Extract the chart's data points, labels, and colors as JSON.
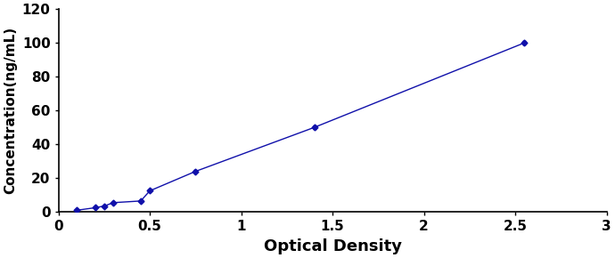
{
  "x_values": [
    0.1,
    0.2,
    0.25,
    0.3,
    0.45,
    0.5,
    0.75,
    1.4,
    2.55
  ],
  "y_values": [
    1.0,
    2.5,
    3.5,
    5.5,
    6.5,
    12.5,
    24.0,
    50.0,
    100.0
  ],
  "y_errors": [
    0.3,
    0.3,
    0.3,
    0.3,
    0.4,
    0.5,
    0.7,
    1.0,
    1.2
  ],
  "line_color": "#1010aa",
  "marker_color": "#1010aa",
  "marker": "D",
  "marker_size": 3.5,
  "line_width": 1.0,
  "xlabel": "Optical Density",
  "ylabel": "Concentration(ng/mL)",
  "xlim": [
    0,
    3
  ],
  "ylim": [
    0,
    120
  ],
  "xticks": [
    0,
    0.5,
    1,
    1.5,
    2,
    2.5,
    3
  ],
  "xtick_labels": [
    "0",
    "0.5",
    "1",
    "1.5",
    "2",
    "2.5",
    "3"
  ],
  "yticks": [
    0,
    20,
    40,
    60,
    80,
    100,
    120
  ],
  "xlabel_fontsize": 13,
  "ylabel_fontsize": 11,
  "tick_fontsize": 11,
  "xlabel_bold": true,
  "ylabel_bold": true,
  "background_color": "#ffffff"
}
